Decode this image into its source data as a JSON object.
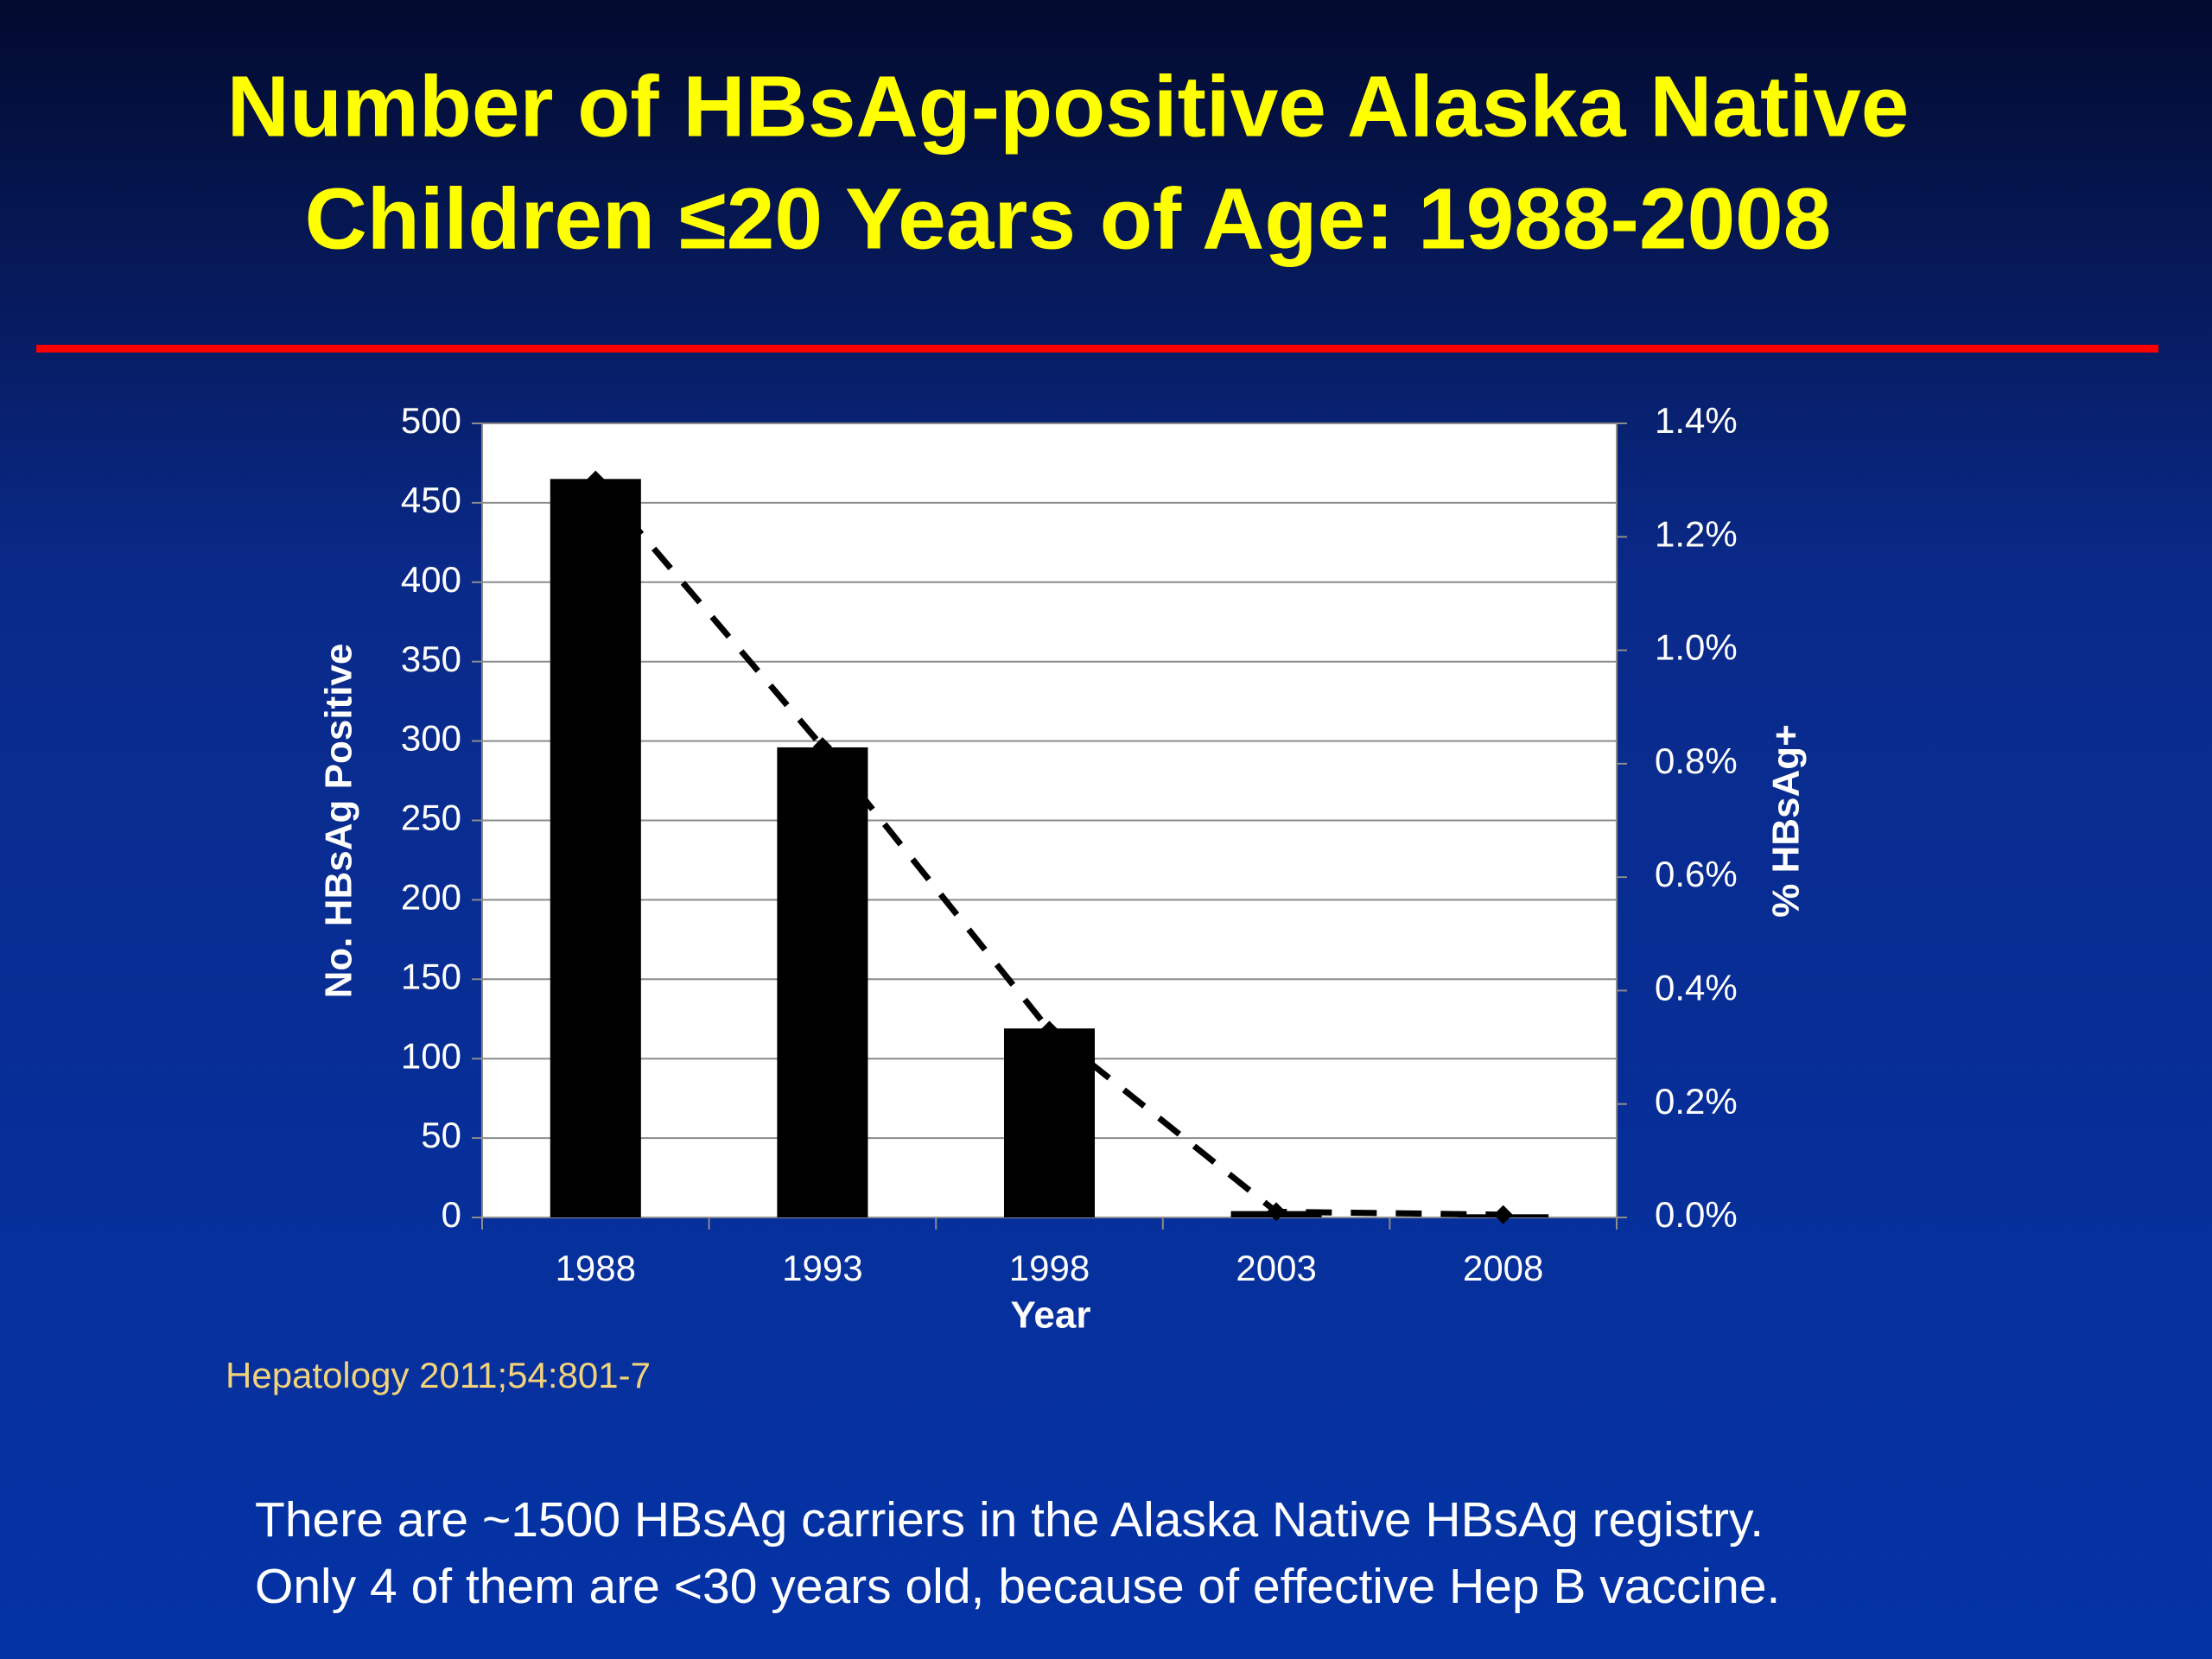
{
  "chart_data": {
    "type": "bar",
    "title": [
      "Number of HBsAg-positive Alaska Native",
      "Children ≤20 Years of Age: 1988-2008"
    ],
    "categories": [
      "1988",
      "1993",
      "1998",
      "2003",
      "2008"
    ],
    "x_label": "Year",
    "y_label": "No. HBsAg Positive",
    "y2_label": "% HBsAg+",
    "series": [
      {
        "type": "bar",
        "color": "#000000",
        "values": [
          465,
          296,
          119,
          4,
          2
        ]
      },
      {
        "type": "line",
        "axis": "y2",
        "color": "#000000",
        "values": [
          1.3,
          0.83,
          0.33,
          0.01,
          0.005
        ]
      }
    ],
    "ylim": [
      0,
      500
    ],
    "yticks": [
      0,
      50,
      100,
      150,
      200,
      250,
      300,
      350,
      400,
      450,
      500
    ],
    "y2lim": [
      0,
      1.4
    ],
    "y2ticks": [
      {
        "value": 0,
        "label": "0.0%"
      },
      {
        "value": 0.2,
        "label": "0.2%"
      },
      {
        "value": 0.4,
        "label": "0.4%"
      },
      {
        "value": 0.6,
        "label": "0.6%"
      },
      {
        "value": 0.8,
        "label": "0.8%"
      },
      {
        "value": 1.0,
        "label": "1.0%"
      },
      {
        "value": 1.2,
        "label": "1.2%"
      },
      {
        "value": 1.4,
        "label": "1.4%"
      }
    ],
    "grid": true,
    "source": "Hepatology 2011;54:801-7",
    "notes": [
      "There are ~1500 HBsAg carriers in the Alaska Native HBsAg registry.",
      "Only 4 of them are <30 years old, because of effective Hep B vaccine."
    ]
  }
}
